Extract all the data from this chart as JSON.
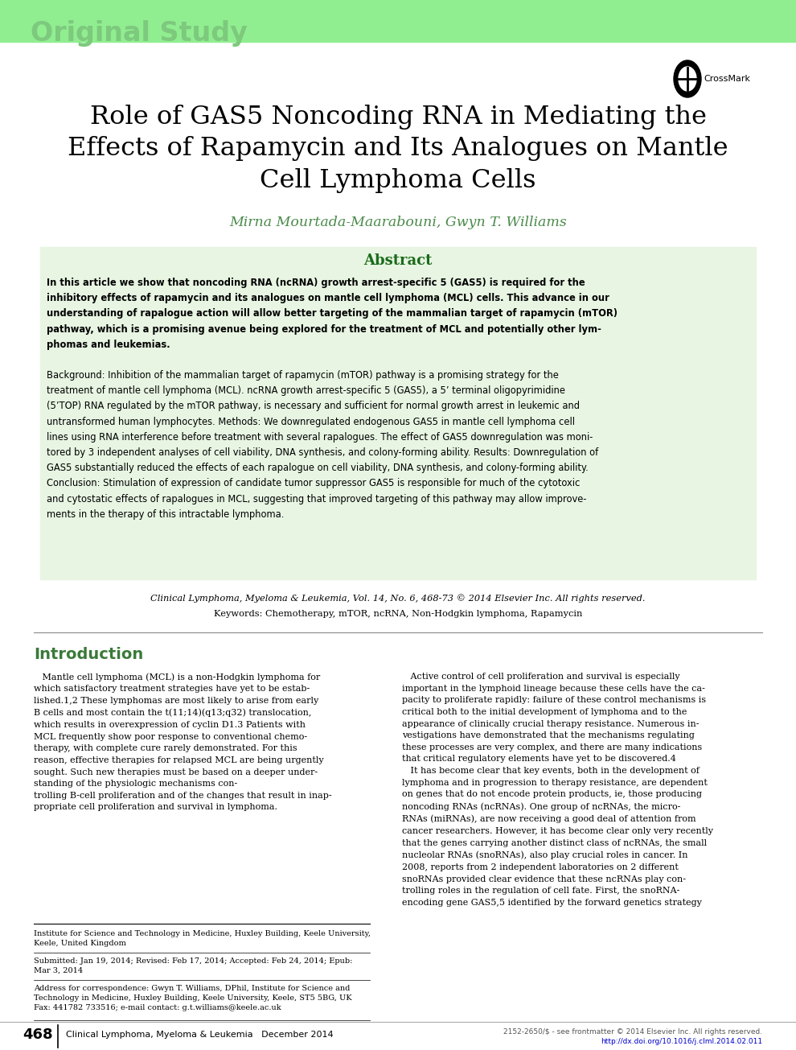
{
  "page_bg": "#ffffff",
  "top_bar_color": "#90EE90",
  "original_study_text": "Original Study",
  "original_study_color": "#7DC97D",
  "title_line1": "Role of GAS5 Noncoding RNA in Mediating the",
  "title_line2": "Effects of Rapamycin and Its Analogues on Mantle",
  "title_line3": "Cell Lymphoma Cells",
  "authors": "Mirna Mourtada-Maarabouni, Gwyn T. Williams",
  "authors_color": "#4A8A4A",
  "abstract_title": "Abstract",
  "abstract_title_color": "#1A6B1A",
  "abstract_bg": "#E8F5E3",
  "journal_line1_italic": "Clinical Lymphoma, Myeloma & Leukemia,",
  "journal_line1_rest": " Vol. 14, No. 6, 468-73 © 2014 Elsevier Inc. All rights reserved.",
  "keywords_bold": "Keywords:",
  "keywords_rest": " Chemotherapy, mTOR, ncRNA, Non-Hodgkin lymphoma, Rapamycin",
  "intro_title": "Introduction",
  "intro_title_color": "#3A7A3A",
  "col1_para": "   Mantle cell lymphoma (MCL) is a non-Hodgkin lymphoma for\nwhich satisfactory treatment strategies have yet to be estab-\nlished.1,2 These lymphomas are most likely to arise from early\nB cells and most contain the t(11;14)(q13;q32) translocation,\nwhich results in overexpression of cyclin D1.3 Patients with\nMCL frequently show poor response to conventional chemo-\ntherapy, with complete cure rarely demonstrated. For this\nreason, effective therapies for relapsed MCL are being urgently\nsought. Such new therapies must be based on a deeper under-\nstanding of the physiologic mechanisms con-\ntrolling B-cell proliferation and of the changes that result in inap-\npropriate cell proliferation and survival in lymphoma.",
  "col2_para": "   Active control of cell proliferation and survival is especially\nimportant in the lymphoid lineage because these cells have the ca-\npacity to proliferate rapidly: failure of these control mechanisms is\ncritical both to the initial development of lymphoma and to the\nappearance of clinically crucial therapy resistance. Numerous in-\nvestigations have demonstrated that the mechanisms regulating\nthese processes are very complex, and there are many indications\nthat critical regulatory elements have yet to be discovered.4\n   It has become clear that key events, both in the development of\nlymphoma and in progression to therapy resistance, are dependent\non genes that do not encode protein products, ie, those producing\nnoncoding RNAs (ncRNAs). One group of ncRNAs, the micro-\nRNAs (miRNAs), are now receiving a good deal of attention from\ncancer researchers. However, it has become clear only very recently\nthat the genes carrying another distinct class of ncRNAs, the small\nnucleolar RNAs (snoRNAs), also play crucial roles in cancer. In\n2008, reports from 2 independent laboratories on 2 different\nsnoRNAs provided clear evidence that these ncRNAs play con-\ntrolling roles in the regulation of cell fate. First, the snoRNA-\nencoding gene GAS5,5 identified by the forward genetics strategy",
  "footer_line1": "Institute for Science and Technology in Medicine, Huxley Building, Keele University,",
  "footer_line2": "Keele, United Kingdom",
  "footer_line3": "Submitted: Jan 19, 2014; Revised: Feb 17, 2014; Accepted: Feb 24, 2014; Epub:",
  "footer_line4": "Mar 3, 2014",
  "footer_line5": "Address for correspondence: Gwyn T. Williams, DPhil, Institute for Science and",
  "footer_line6": "Technology in Medicine, Huxley Building, Keele University, Keele, ST5 5BG, UK",
  "footer_line7": "Fax: 441782 733516; e-mail contact: g.t.williams@keele.ac.uk",
  "page_num": "468",
  "bottom_journal": "Clinical Lymphoma, Myeloma & Leukemia   December 2014",
  "bottom_right1": "2152-2650/$ - see frontmatter © 2014 Elsevier Inc. All rights reserved.",
  "bottom_right2": "http://dx.doi.org/10.1016/j.clml.2014.02.011",
  "abstract_intro_bold": "In this article we show that noncoding RNA (ncRNA) growth arrest-specific 5 (GAS5) is required for the\ninhibitory effects of rapamycin and its analogues on mantle cell lymphoma (MCL) cells. This advance in our\nunderstanding of rapalogue action will allow better targeting of the mammalian target of rapamycin (mTOR)\npathway, which is a promising avenue being explored for the treatment of MCL and potentially other lym-\nphomas and leukemias.",
  "abstract_body": "Background: Inhibition of the mammalian target of rapamycin (mTOR) pathway is a promising strategy for the\ntreatment of mantle cell lymphoma (MCL). ncRNA growth arrest-specific 5 (GAS5), a 5’ terminal oligopyrimidine\n(5’TOP) RNA regulated by the mTOR pathway, is necessary and sufficient for normal growth arrest in leukemic and\nuntransformed human lymphocytes. Methods: We downregulated endogenous GAS5 in mantle cell lymphoma cell\nlines using RNA interference before treatment with several rapalogues. The effect of GAS5 downregulation was moni-\ntored by 3 independent analyses of cell viability, DNA synthesis, and colony-forming ability. Results: Downregulation of\nGAS5 substantially reduced the effects of each rapalogue on cell viability, DNA synthesis, and colony-forming ability.\nConclusion: Stimulation of expression of candidate tumor suppressor GAS5 is responsible for much of the cytotoxic\nand cytostatic effects of rapalogues in MCL, suggesting that improved targeting of this pathway may allow improve-\nments in the therapy of this intractable lymphoma."
}
